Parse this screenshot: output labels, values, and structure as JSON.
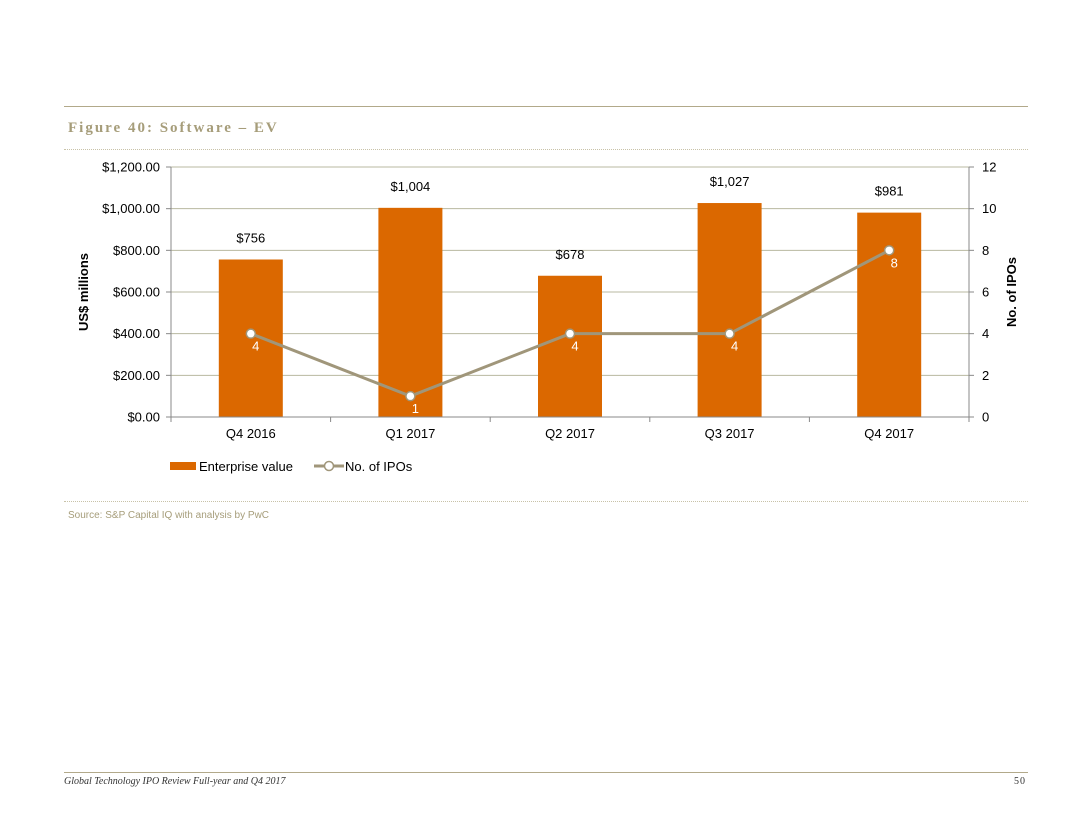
{
  "figure_title": "Figure 40: Software – EV",
  "source": "Source: S&P Capital IQ with analysis by PwC",
  "footer": {
    "left": "Global Technology IPO Review Full-year and Q4 2017",
    "page_number": "50"
  },
  "colors": {
    "bar": "#db6800",
    "line": "#a0967a",
    "grid": "#b8b8a0",
    "rule": "#b2a98a"
  },
  "chart_data": {
    "type": "bar",
    "categories": [
      "Q4 2016",
      "Q1 2017",
      "Q2 2017",
      "Q3 2017",
      "Q4 2017"
    ],
    "series": [
      {
        "name": "Enterprise value",
        "type": "bar",
        "axis": "left",
        "values": [
          756,
          1004,
          678,
          1027,
          981
        ],
        "data_labels": [
          "$756",
          "$1,004",
          "$678",
          "$1,027",
          "$981"
        ]
      },
      {
        "name": "No. of IPOs",
        "type": "line",
        "axis": "right",
        "values": [
          4,
          1,
          4,
          4,
          8
        ],
        "data_labels": [
          "4",
          "1",
          "4",
          "4",
          "8"
        ]
      }
    ],
    "ylabel": "US$ millions",
    "y2label": "No. of IPOs",
    "ylim": [
      0,
      1200
    ],
    "y2lim": [
      0,
      12
    ],
    "yticks": [
      "$0.00",
      "$200.00",
      "$400.00",
      "$600.00",
      "$800.00",
      "$1,000.00",
      "$1,200.00"
    ],
    "y2ticks": [
      "0",
      "2",
      "4",
      "6",
      "8",
      "10",
      "12"
    ],
    "grid": true,
    "legend_position": "bottom-left"
  }
}
